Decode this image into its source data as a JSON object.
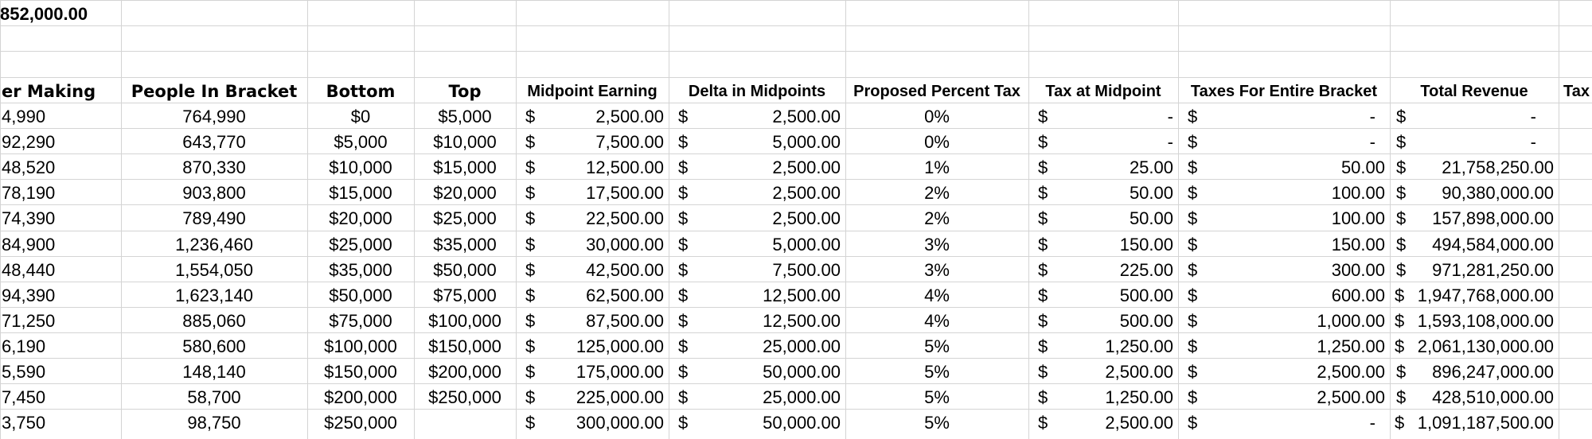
{
  "top_value": "852,000.00",
  "headers": {
    "a": "er Making",
    "b": "People In Bracket",
    "c": "Bottom",
    "d": "Top",
    "e": "Midpoint Earning",
    "f": "Delta in Midpoints",
    "g": "Proposed Percent Tax",
    "h": "Tax at Midpoint",
    "i": "Taxes For Entire Bracket",
    "j": "Total Revenue",
    "k": "Tax"
  },
  "currency_symbol": "$",
  "rows": [
    {
      "a": "4,990",
      "b": "764,990",
      "c": "$0",
      "d": "$5,000",
      "e": "2,500.00",
      "f": "2,500.00",
      "g": "0%",
      "h": "-",
      "i": "-",
      "j_sym": "$",
      "j": "-"
    },
    {
      "a": "92,290",
      "b": "643,770",
      "c": "$5,000",
      "d": "$10,000",
      "e": "7,500.00",
      "f": "5,000.00",
      "g": "0%",
      "h": "-",
      "i": "-",
      "j_sym": "$",
      "j": "-"
    },
    {
      "a": "48,520",
      "b": "870,330",
      "c": "$10,000",
      "d": "$15,000",
      "e": "12,500.00",
      "f": "2,500.00",
      "g": "1%",
      "h": "25.00",
      "i": "50.00",
      "j_sym": "$",
      "j": "21,758,250.00"
    },
    {
      "a": "78,190",
      "b": "903,800",
      "c": "$15,000",
      "d": "$20,000",
      "e": "17,500.00",
      "f": "2,500.00",
      "g": "2%",
      "h": "50.00",
      "i": "100.00",
      "j_sym": "$",
      "j": "90,380,000.00"
    },
    {
      "a": "74,390",
      "b": "789,490",
      "c": "$20,000",
      "d": "$25,000",
      "e": "22,500.00",
      "f": "2,500.00",
      "g": "2%",
      "h": "50.00",
      "i": "100.00",
      "j_sym": "$",
      "j": "157,898,000.00"
    },
    {
      "a": "84,900",
      "b": "1,236,460",
      "c": "$25,000",
      "d": "$35,000",
      "e": "30,000.00",
      "f": "5,000.00",
      "g": "3%",
      "h": "150.00",
      "i": "150.00",
      "j_sym": "$",
      "j": "494,584,000.00"
    },
    {
      "a": "48,440",
      "b": "1,554,050",
      "c": "$35,000",
      "d": "$50,000",
      "e": "42,500.00",
      "f": "7,500.00",
      "g": "3%",
      "h": "225.00",
      "i": "300.00",
      "j_sym": "$",
      "j": "971,281,250.00"
    },
    {
      "a": "94,390",
      "b": "1,623,140",
      "c": "$50,000",
      "d": "$75,000",
      "e": "62,500.00",
      "f": "12,500.00",
      "g": "4%",
      "h": "500.00",
      "i": "600.00",
      "j_sym": "$",
      "j": "1,947,768,000.00"
    },
    {
      "a": "71,250",
      "b": "885,060",
      "c": "$75,000",
      "d": "$100,000",
      "e": "87,500.00",
      "f": "12,500.00",
      "g": "4%",
      "h": "500.00",
      "i": "1,000.00",
      "j_sym": "$",
      "j": "1,593,108,000.00"
    },
    {
      "a": "6,190",
      "b": "580,600",
      "c": "$100,000",
      "d": "$150,000",
      "e": "125,000.00",
      "f": "25,000.00",
      "g": "5%",
      "h": "1,250.00",
      "i": "1,250.00",
      "j_sym": "$",
      "j": "2,061,130,000.00"
    },
    {
      "a": "5,590",
      "b": "148,140",
      "c": "$150,000",
      "d": "$200,000",
      "e": "175,000.00",
      "f": "50,000.00",
      "g": "5%",
      "h": "2,500.00",
      "i": "2,500.00",
      "j_sym": "$",
      "j": "896,247,000.00"
    },
    {
      "a": "7,450",
      "b": "58,700",
      "c": "$200,000",
      "d": "$250,000",
      "e": "225,000.00",
      "f": "25,000.00",
      "g": "5%",
      "h": "1,250.00",
      "i": "2,500.00",
      "j_sym": "$",
      "j": "428,510,000.00"
    },
    {
      "a": "3,750",
      "b": "98,750",
      "c": "$250,000",
      "d": "",
      "e": "300,000.00",
      "f": "50,000.00",
      "g": "5%",
      "h": "2,500.00",
      "i": "-",
      "j_sym": "$",
      "j": "1,091,187,500.00"
    }
  ]
}
